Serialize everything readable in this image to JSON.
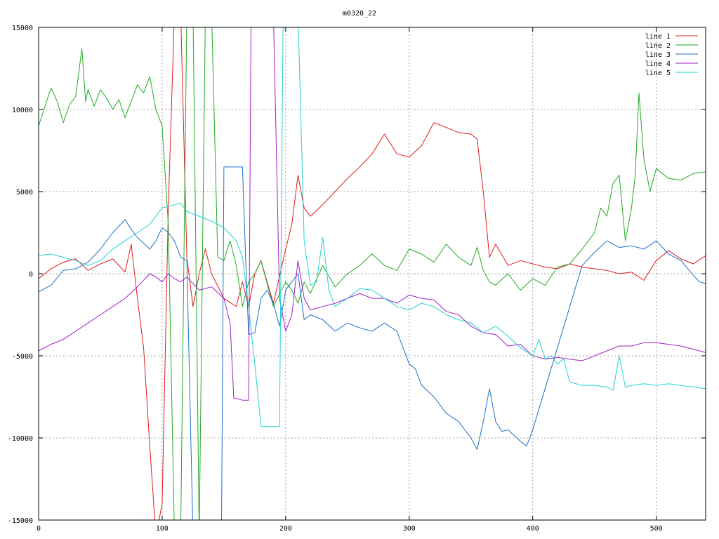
{
  "chart_data": {
    "type": "line",
    "title": "m0320_22",
    "xlabel": "",
    "ylabel": "",
    "xlim": [
      0,
      540
    ],
    "ylim": [
      -15000,
      15000
    ],
    "xticks": [
      0,
      100,
      200,
      300,
      400,
      500
    ],
    "yticks": [
      -15000,
      -10000,
      -5000,
      0,
      5000,
      10000,
      15000
    ],
    "grid": true,
    "legend_position": "top-right",
    "series": [
      {
        "name": "line 1",
        "color": "#e41a1c",
        "x": [
          0,
          10,
          20,
          30,
          40,
          50,
          60,
          70,
          75,
          80,
          85,
          90,
          95,
          100,
          105,
          110,
          115,
          120,
          125,
          130,
          135,
          140,
          150,
          160,
          165,
          170,
          175,
          180,
          190,
          200,
          205,
          210,
          215,
          220,
          230,
          240,
          250,
          260,
          270,
          280,
          290,
          300,
          310,
          320,
          330,
          340,
          350,
          355,
          360,
          365,
          370,
          380,
          390,
          400,
          410,
          420,
          430,
          440,
          450,
          460,
          470,
          480,
          490,
          500,
          510,
          520,
          530,
          540
        ],
        "y": [
          -300,
          300,
          700,
          900,
          200,
          600,
          900,
          100,
          1800,
          -1500,
          -4500,
          -10500,
          -16000,
          -14000,
          4000,
          16000,
          16000,
          1000,
          -2000,
          0,
          1500,
          0,
          -1500,
          -2000,
          -500,
          -2000,
          0,
          800,
          -1800,
          1500,
          3000,
          6000,
          4000,
          3500,
          4200,
          5000,
          5800,
          6500,
          7300,
          8500,
          7300,
          7100,
          7800,
          9200,
          8900,
          8600,
          8500,
          8200,
          5000,
          1000,
          1800,
          500,
          800,
          600,
          400,
          300,
          600,
          400,
          300,
          200,
          0,
          100,
          -400,
          800,
          1400,
          900,
          600,
          1100
        ]
      },
      {
        "name": "line 2",
        "color": "#22aa22",
        "x": [
          0,
          10,
          15,
          20,
          25,
          30,
          35,
          38,
          40,
          45,
          50,
          55,
          60,
          65,
          70,
          75,
          80,
          85,
          90,
          95,
          100,
          105,
          110,
          115,
          120,
          125,
          130,
          135,
          140,
          145,
          150,
          155,
          160,
          165,
          170,
          175,
          180,
          190,
          200,
          205,
          210,
          215,
          220,
          230,
          240,
          250,
          260,
          270,
          280,
          290,
          300,
          310,
          320,
          330,
          340,
          350,
          355,
          360,
          365,
          370,
          380,
          390,
          400,
          410,
          420,
          430,
          440,
          450,
          455,
          460,
          465,
          470,
          475,
          480,
          483,
          486,
          490,
          495,
          500,
          510,
          520,
          530,
          540
        ],
        "y": [
          9000,
          11300,
          10500,
          9200,
          10300,
          10800,
          13700,
          10500,
          11200,
          10200,
          11200,
          10700,
          10000,
          10600,
          9500,
          10500,
          11500,
          11000,
          12000,
          10000,
          9000,
          3000,
          -16000,
          -16000,
          16000,
          16000,
          -16000,
          16000,
          16000,
          1000,
          800,
          2000,
          500,
          -2000,
          -500,
          0,
          800,
          -2000,
          -500,
          -1000,
          -1800,
          -500,
          -1200,
          500,
          -800,
          0,
          500,
          1200,
          500,
          200,
          1500,
          1200,
          700,
          1800,
          1000,
          500,
          1600,
          200,
          -500,
          -700,
          0,
          -1000,
          -300,
          -700,
          400,
          600,
          1500,
          2500,
          4000,
          3500,
          5500,
          6000,
          2000,
          4000,
          6000,
          11000,
          7000,
          5000,
          6400,
          5800,
          5700,
          6100,
          6200
        ]
      },
      {
        "name": "line 3",
        "color": "#1e6fc8",
        "x": [
          0,
          10,
          20,
          30,
          40,
          50,
          60,
          70,
          75,
          80,
          90,
          95,
          100,
          105,
          110,
          115,
          120,
          125,
          130,
          133,
          135,
          148,
          150,
          155,
          160,
          165,
          168,
          170,
          175,
          180,
          185,
          190,
          195,
          200,
          205,
          210,
          215,
          220,
          230,
          240,
          250,
          260,
          270,
          280,
          290,
          300,
          305,
          310,
          320,
          330,
          340,
          350,
          355,
          360,
          365,
          370,
          375,
          380,
          390,
          395,
          400,
          410,
          420,
          430,
          440,
          450,
          460,
          470,
          480,
          490,
          500,
          510,
          520,
          530,
          535,
          540
        ],
        "y": [
          -1100,
          -700,
          200,
          300,
          700,
          1500,
          2500,
          3300,
          2700,
          2200,
          1500,
          2000,
          2800,
          2500,
          2000,
          1000,
          800,
          -16000,
          -16000,
          -16000,
          -16000,
          -16000,
          6500,
          6500,
          6500,
          6500,
          0,
          -3700,
          -3600,
          -1500,
          -1000,
          -1800,
          -3200,
          -1000,
          -500,
          0,
          -2800,
          -2500,
          -2800,
          -3500,
          -3000,
          -3300,
          -3500,
          -3000,
          -3500,
          -5500,
          -5800,
          -6800,
          -7500,
          -8500,
          -9000,
          -10000,
          -10700,
          -9000,
          -7000,
          -9000,
          -9600,
          -9500,
          -10200,
          -10500,
          -9500,
          -7000,
          -4500,
          -2000,
          500,
          1300,
          2000,
          1600,
          1700,
          1500,
          2000,
          1200,
          800,
          -100,
          -500,
          -600
        ]
      },
      {
        "name": "line 4",
        "color": "#a020c8",
        "x": [
          0,
          10,
          20,
          30,
          40,
          50,
          60,
          70,
          80,
          90,
          95,
          100,
          105,
          110,
          115,
          120,
          130,
          140,
          150,
          155,
          158,
          160,
          165,
          170,
          172,
          175,
          180,
          185,
          190,
          195,
          200,
          205,
          210,
          215,
          220,
          230,
          240,
          250,
          260,
          270,
          280,
          290,
          300,
          310,
          320,
          330,
          340,
          350,
          360,
          370,
          380,
          390,
          400,
          410,
          420,
          430,
          440,
          450,
          460,
          470,
          480,
          490,
          500,
          510,
          520,
          530,
          540
        ],
        "y": [
          -4700,
          -4300,
          -4000,
          -3500,
          -3000,
          -2500,
          -2000,
          -1500,
          -800,
          0,
          -200,
          -500,
          0,
          -300,
          -500,
          -200,
          -1000,
          -800,
          -1500,
          -3000,
          -7600,
          -7600,
          -7700,
          -7700,
          16000,
          16000,
          16000,
          16000,
          16000,
          -1500,
          -3500,
          -2500,
          800,
          -1500,
          -2200,
          -2000,
          -1800,
          -1500,
          -1200,
          -1500,
          -1500,
          -1800,
          -1300,
          -1500,
          -1600,
          -2300,
          -2500,
          -3200,
          -3600,
          -3700,
          -4400,
          -4300,
          -5000,
          -5200,
          -5100,
          -5200,
          -5300,
          -5000,
          -4700,
          -4400,
          -4400,
          -4200,
          -4200,
          -4300,
          -4400,
          -4600,
          -4800
        ]
      },
      {
        "name": "line 5",
        "color": "#22d2d2",
        "x": [
          0,
          10,
          20,
          30,
          40,
          50,
          60,
          70,
          80,
          90,
          100,
          110,
          115,
          120,
          130,
          140,
          150,
          160,
          165,
          170,
          175,
          180,
          190,
          195,
          198,
          200,
          205,
          210,
          215,
          220,
          225,
          230,
          235,
          240,
          250,
          260,
          270,
          280,
          290,
          300,
          310,
          320,
          330,
          340,
          350,
          360,
          370,
          380,
          390,
          400,
          405,
          410,
          415,
          420,
          425,
          430,
          440,
          450,
          460,
          465,
          470,
          475,
          480,
          490,
          500,
          510,
          520,
          530,
          540
        ],
        "y": [
          1100,
          1200,
          1000,
          800,
          500,
          800,
          1500,
          2000,
          2500,
          3000,
          4000,
          4200,
          4300,
          3800,
          3500,
          3200,
          2800,
          2000,
          1000,
          -2000,
          -5500,
          -9300,
          -9300,
          -9300,
          16000,
          16000,
          16000,
          16000,
          2000,
          -700,
          -500,
          2200,
          -1000,
          -2000,
          -1500,
          -900,
          -1000,
          -1500,
          -2000,
          -2200,
          -1800,
          -2000,
          -2500,
          -2800,
          -3000,
          -3600,
          -3200,
          -3800,
          -4500,
          -5000,
          -4000,
          -5200,
          -5000,
          -5500,
          -5200,
          -6600,
          -6800,
          -6800,
          -6900,
          -7100,
          -5000,
          -6900,
          -6800,
          -6700,
          -6800,
          -6700,
          -6800,
          -6900,
          -7000
        ]
      }
    ]
  }
}
